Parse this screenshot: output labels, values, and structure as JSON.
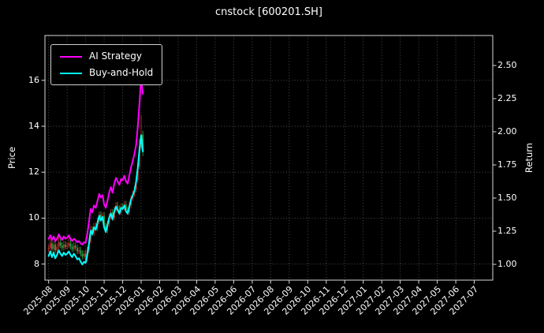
{
  "title": "cnstock [600201.SH]",
  "colors": {
    "background": "#000000",
    "text": "#ffffff",
    "grid": "#565656",
    "spine": "#d9d9d9",
    "tick": "#d9d9d9"
  },
  "chart_data": {
    "type": "candlestick+line",
    "title": "cnstock [600201.SH]",
    "x_axis": {
      "unit": "months-from-2025-08",
      "lim": [
        -0.2,
        24.0
      ],
      "tick_labels": [
        "2025-08",
        "2025-09",
        "2025-10",
        "2025-11",
        "2025-12",
        "2026-01",
        "2026-02",
        "2026-03",
        "2026-04",
        "2026-05",
        "2026-06",
        "2026-07",
        "2026-08",
        "2026-09",
        "2026-10",
        "2026-11",
        "2026-12",
        "2027-01",
        "2027-02",
        "2027-03",
        "2027-04",
        "2027-05",
        "2027-06",
        "2027-07"
      ]
    },
    "y_left": {
      "label": "Price",
      "ticks": [
        8,
        10,
        12,
        14,
        16
      ],
      "lim": [
        7.3,
        17.95
      ]
    },
    "y_right": {
      "label": "Return",
      "ticks": [
        "1.00",
        "1.25",
        "1.50",
        "1.75",
        "2.00",
        "2.25",
        "2.50"
      ],
      "lim": [
        0.881,
        2.726
      ]
    },
    "legend_position": "upper-left",
    "grid": "dotted",
    "series": [
      {
        "name": "AI Strategy",
        "color": "#ff00ff",
        "axis": "left",
        "points": [
          [
            0.0,
            9.1
          ],
          [
            0.09,
            9.25
          ],
          [
            0.18,
            9.05
          ],
          [
            0.27,
            9.2
          ],
          [
            0.36,
            9.0
          ],
          [
            0.45,
            9.1
          ],
          [
            0.55,
            9.3
          ],
          [
            0.64,
            9.15
          ],
          [
            0.73,
            9.05
          ],
          [
            0.82,
            9.2
          ],
          [
            0.91,
            9.1
          ],
          [
            1.0,
            9.15
          ],
          [
            1.09,
            9.25
          ],
          [
            1.18,
            9.1
          ],
          [
            1.27,
            9.0
          ],
          [
            1.36,
            9.1
          ],
          [
            1.45,
            9.05
          ],
          [
            1.55,
            8.95
          ],
          [
            1.64,
            9.0
          ],
          [
            1.73,
            8.9
          ],
          [
            1.82,
            8.85
          ],
          [
            1.91,
            8.95
          ],
          [
            2.0,
            8.92
          ],
          [
            2.09,
            9.3
          ],
          [
            2.18,
            9.85
          ],
          [
            2.27,
            10.4
          ],
          [
            2.36,
            10.25
          ],
          [
            2.45,
            10.55
          ],
          [
            2.55,
            10.45
          ],
          [
            2.64,
            10.75
          ],
          [
            2.73,
            11.05
          ],
          [
            2.82,
            10.9
          ],
          [
            2.91,
            11.0
          ],
          [
            3.0,
            10.6
          ],
          [
            3.09,
            10.45
          ],
          [
            3.18,
            10.75
          ],
          [
            3.27,
            11.1
          ],
          [
            3.36,
            11.35
          ],
          [
            3.45,
            11.1
          ],
          [
            3.55,
            11.5
          ],
          [
            3.64,
            11.75
          ],
          [
            3.73,
            11.6
          ],
          [
            3.82,
            11.45
          ],
          [
            3.91,
            11.7
          ],
          [
            4.0,
            11.65
          ],
          [
            4.09,
            11.85
          ],
          [
            4.18,
            11.6
          ],
          [
            4.27,
            11.5
          ],
          [
            4.36,
            11.85
          ],
          [
            4.45,
            12.2
          ],
          [
            4.55,
            12.5
          ],
          [
            4.64,
            12.8
          ],
          [
            4.73,
            13.2
          ],
          [
            4.82,
            14.0
          ],
          [
            4.91,
            15.0
          ],
          [
            5.0,
            16.1
          ],
          [
            5.09,
            15.4
          ]
        ]
      },
      {
        "name": "Buy-and-Hold",
        "color": "#00ffff",
        "axis": "left",
        "points": [
          [
            0.0,
            8.35
          ],
          [
            0.09,
            8.55
          ],
          [
            0.18,
            8.3
          ],
          [
            0.27,
            8.5
          ],
          [
            0.36,
            8.25
          ],
          [
            0.45,
            8.4
          ],
          [
            0.55,
            8.6
          ],
          [
            0.64,
            8.45
          ],
          [
            0.73,
            8.35
          ],
          [
            0.82,
            8.5
          ],
          [
            0.91,
            8.4
          ],
          [
            1.0,
            8.45
          ],
          [
            1.09,
            8.55
          ],
          [
            1.18,
            8.4
          ],
          [
            1.27,
            8.3
          ],
          [
            1.36,
            8.45
          ],
          [
            1.45,
            8.35
          ],
          [
            1.55,
            8.2
          ],
          [
            1.64,
            8.25
          ],
          [
            1.73,
            8.1
          ],
          [
            1.82,
            7.98
          ],
          [
            1.91,
            8.1
          ],
          [
            2.0,
            8.05
          ],
          [
            2.09,
            8.4
          ],
          [
            2.18,
            8.9
          ],
          [
            2.27,
            9.45
          ],
          [
            2.36,
            9.3
          ],
          [
            2.45,
            9.6
          ],
          [
            2.55,
            9.5
          ],
          [
            2.64,
            9.8
          ],
          [
            2.73,
            10.1
          ],
          [
            2.82,
            9.9
          ],
          [
            2.91,
            10.05
          ],
          [
            3.0,
            9.6
          ],
          [
            3.09,
            9.4
          ],
          [
            3.18,
            9.7
          ],
          [
            3.27,
            10.0
          ],
          [
            3.36,
            10.2
          ],
          [
            3.45,
            9.95
          ],
          [
            3.55,
            10.3
          ],
          [
            3.64,
            10.5
          ],
          [
            3.73,
            10.35
          ],
          [
            3.82,
            10.2
          ],
          [
            3.91,
            10.45
          ],
          [
            4.0,
            10.4
          ],
          [
            4.09,
            10.55
          ],
          [
            4.18,
            10.3
          ],
          [
            4.27,
            10.2
          ],
          [
            4.36,
            10.5
          ],
          [
            4.45,
            10.8
          ],
          [
            4.55,
            11.0
          ],
          [
            4.64,
            11.2
          ],
          [
            4.73,
            11.6
          ],
          [
            4.82,
            12.2
          ],
          [
            4.91,
            13.0
          ],
          [
            5.0,
            13.6
          ],
          [
            5.09,
            12.9
          ]
        ]
      }
    ],
    "candles": {
      "columns": [
        "t",
        "open",
        "high",
        "low",
        "close"
      ],
      "up_color": "#bf3030",
      "down_color": "#2f9e44",
      "rows": [
        [
          0.0,
          8.65,
          8.85,
          8.53,
          8.7
        ],
        [
          0.09,
          8.7,
          9.1,
          8.58,
          8.9
        ],
        [
          0.18,
          8.9,
          9.05,
          8.53,
          8.65
        ],
        [
          0.27,
          8.65,
          9.0,
          8.53,
          8.85
        ],
        [
          0.36,
          8.85,
          9.0,
          8.48,
          8.6
        ],
        [
          0.45,
          8.6,
          8.9,
          8.48,
          8.75
        ],
        [
          0.55,
          8.75,
          9.2,
          8.63,
          8.95
        ],
        [
          0.64,
          8.95,
          9.1,
          8.68,
          8.8
        ],
        [
          0.73,
          8.8,
          8.95,
          8.58,
          8.7
        ],
        [
          0.82,
          8.7,
          9.0,
          8.58,
          8.85
        ],
        [
          0.91,
          8.85,
          9.0,
          8.63,
          8.75
        ],
        [
          1.0,
          8.75,
          8.95,
          8.63,
          8.8
        ],
        [
          1.09,
          8.8,
          9.15,
          8.68,
          8.9
        ],
        [
          1.18,
          8.9,
          9.05,
          8.63,
          8.75
        ],
        [
          1.27,
          8.75,
          8.9,
          8.53,
          8.65
        ],
        [
          1.36,
          8.65,
          8.95,
          8.53,
          8.8
        ],
        [
          1.45,
          8.8,
          8.95,
          8.58,
          8.7
        ],
        [
          1.55,
          8.7,
          8.85,
          8.43,
          8.55
        ],
        [
          1.64,
          8.55,
          8.75,
          8.43,
          8.6
        ],
        [
          1.73,
          8.6,
          8.75,
          8.33,
          8.45
        ],
        [
          1.82,
          8.45,
          8.6,
          8.21,
          8.33
        ],
        [
          1.91,
          8.33,
          8.6,
          8.21,
          8.45
        ],
        [
          2.0,
          8.45,
          8.6,
          8.15,
          8.28
        ],
        [
          2.09,
          8.28,
          8.75,
          8.1,
          8.6
        ],
        [
          2.18,
          8.6,
          9.15,
          8.48,
          9.0
        ],
        [
          2.27,
          9.0,
          9.65,
          8.88,
          9.5
        ],
        [
          2.36,
          9.5,
          9.65,
          9.23,
          9.35
        ],
        [
          2.45,
          9.35,
          9.8,
          9.23,
          9.65
        ],
        [
          2.55,
          9.65,
          9.8,
          9.43,
          9.55
        ],
        [
          2.64,
          9.55,
          10.0,
          9.43,
          9.85
        ],
        [
          2.73,
          9.85,
          10.3,
          9.73,
          10.15
        ],
        [
          2.82,
          10.15,
          10.3,
          9.83,
          9.95
        ],
        [
          2.91,
          9.95,
          10.25,
          9.83,
          10.1
        ],
        [
          3.0,
          10.1,
          10.25,
          9.53,
          9.65
        ],
        [
          3.09,
          9.65,
          9.8,
          9.33,
          9.45
        ],
        [
          3.18,
          9.45,
          9.9,
          9.33,
          9.75
        ],
        [
          3.27,
          9.75,
          10.2,
          9.63,
          10.05
        ],
        [
          3.36,
          10.05,
          10.4,
          9.93,
          10.25
        ],
        [
          3.45,
          10.25,
          10.4,
          9.88,
          10.0
        ],
        [
          3.55,
          10.0,
          10.5,
          9.88,
          10.35
        ],
        [
          3.64,
          10.35,
          10.7,
          10.23,
          10.55
        ],
        [
          3.73,
          10.55,
          10.7,
          10.28,
          10.4
        ],
        [
          3.82,
          10.4,
          10.55,
          10.13,
          10.25
        ],
        [
          3.91,
          10.25,
          10.65,
          10.13,
          10.5
        ],
        [
          4.0,
          10.5,
          10.65,
          10.33,
          10.45
        ],
        [
          4.09,
          10.45,
          10.75,
          10.33,
          10.6
        ],
        [
          4.18,
          10.6,
          10.75,
          10.23,
          10.35
        ],
        [
          4.27,
          10.35,
          10.5,
          10.13,
          10.25
        ],
        [
          4.36,
          10.25,
          10.7,
          10.13,
          10.55
        ],
        [
          4.45,
          10.55,
          11.0,
          10.43,
          10.85
        ],
        [
          4.55,
          10.85,
          11.2,
          10.73,
          11.05
        ],
        [
          4.64,
          11.05,
          11.4,
          10.93,
          11.25
        ],
        [
          4.73,
          11.25,
          11.8,
          11.13,
          11.65
        ],
        [
          4.82,
          11.65,
          12.4,
          11.53,
          12.25
        ],
        [
          4.91,
          12.25,
          13.45,
          12.13,
          13.05
        ],
        [
          5.0,
          13.05,
          14.5,
          12.93,
          13.65
        ],
        [
          5.09,
          13.65,
          13.8,
          12.7,
          12.95
        ]
      ]
    }
  }
}
